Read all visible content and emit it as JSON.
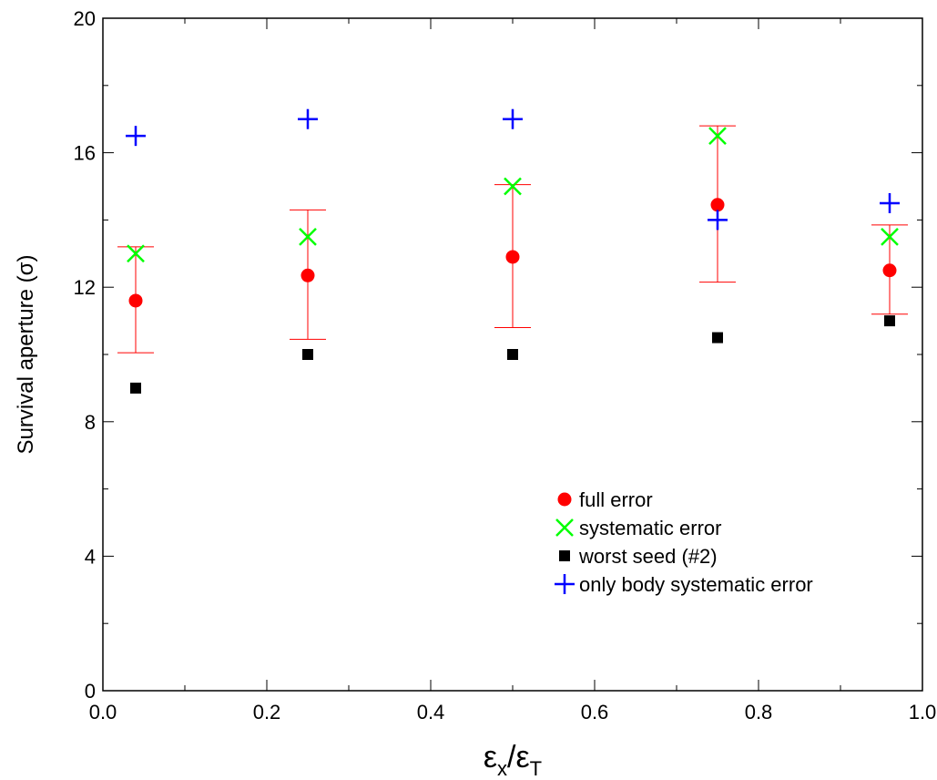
{
  "chart_data": {
    "type": "scatter",
    "title": "",
    "xlabel": {
      "base1": "ε",
      "sub1": "x",
      "sep": "/",
      "base2": "ε",
      "sub2": "T"
    },
    "ylabel": "Survival aperture (σ)",
    "xlim": [
      0.0,
      1.0
    ],
    "ylim": [
      0,
      20
    ],
    "xticks": [
      "0.0",
      "0.2",
      "0.4",
      "0.6",
      "0.8",
      "1.0"
    ],
    "yticks": [
      "0",
      "4",
      "8",
      "12",
      "16",
      "20"
    ],
    "grid": false,
    "legend_position": "bottom-right",
    "series": [
      {
        "name": "full error",
        "marker": "circle",
        "color": "#ff0000",
        "x": [
          0.04,
          0.25,
          0.5,
          0.75,
          0.96
        ],
        "y": [
          11.6,
          12.35,
          12.9,
          14.45,
          12.5
        ],
        "err_low": [
          10.05,
          10.45,
          10.8,
          12.15,
          11.2
        ],
        "err_high": [
          13.2,
          14.3,
          15.05,
          16.8,
          13.85
        ]
      },
      {
        "name": "systematic error",
        "marker": "x",
        "color": "#00ff00",
        "x": [
          0.04,
          0.25,
          0.5,
          0.75,
          0.96
        ],
        "y": [
          13.0,
          13.5,
          15.0,
          16.5,
          13.5
        ]
      },
      {
        "name": "worst seed (#2)",
        "marker": "square",
        "color": "#000000",
        "x": [
          0.04,
          0.25,
          0.5,
          0.75,
          0.96
        ],
        "y": [
          9.0,
          10.0,
          10.0,
          10.5,
          11.0
        ]
      },
      {
        "name": "only body systematic error",
        "marker": "plus",
        "color": "#0000ff",
        "x": [
          0.04,
          0.25,
          0.5,
          0.75,
          0.96
        ],
        "y": [
          16.5,
          17.0,
          17.0,
          14.0,
          14.5
        ]
      }
    ]
  }
}
